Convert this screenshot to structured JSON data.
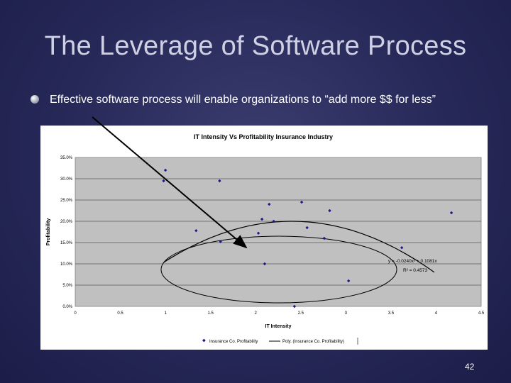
{
  "slide": {
    "title": "The Leverage of Software Process",
    "bullet": "Effective software process will enable organizations to “add more $$ for less”",
    "page_number": "42"
  },
  "chart_data": {
    "type": "scatter",
    "title": "IT Intensity Vs Profitability Insurance Industry",
    "xlabel": "IT Intensity",
    "ylabel": "Profitability",
    "xlim": [
      0,
      4.5
    ],
    "ylim": [
      0,
      0.35
    ],
    "x_ticks": [
      "0",
      "0.5",
      "1",
      "1.5",
      "2",
      "2.5",
      "3",
      "3.5",
      "4",
      "4.5"
    ],
    "y_ticks": [
      "0.0%",
      "5.0%",
      "10.0%",
      "15.0%",
      "20.0%",
      "25.0%",
      "30.0%",
      "35.0%"
    ],
    "grid": true,
    "series": [
      {
        "name": "Insurance Co. Profitability",
        "marker_color": "#1a1a8a",
        "points": [
          {
            "x": 0.98,
            "y": 0.295
          },
          {
            "x": 1.0,
            "y": 0.32
          },
          {
            "x": 1.34,
            "y": 0.178
          },
          {
            "x": 1.6,
            "y": 0.295
          },
          {
            "x": 1.61,
            "y": 0.152
          },
          {
            "x": 2.03,
            "y": 0.172
          },
          {
            "x": 2.07,
            "y": 0.205
          },
          {
            "x": 2.1,
            "y": 0.1
          },
          {
            "x": 2.15,
            "y": 0.24
          },
          {
            "x": 2.2,
            "y": 0.2
          },
          {
            "x": 2.43,
            "y": 0.0
          },
          {
            "x": 2.51,
            "y": 0.245
          },
          {
            "x": 2.57,
            "y": 0.185
          },
          {
            "x": 2.76,
            "y": 0.16
          },
          {
            "x": 2.82,
            "y": 0.225
          },
          {
            "x": 3.03,
            "y": 0.06
          },
          {
            "x": 3.62,
            "y": 0.138
          },
          {
            "x": 4.17,
            "y": 0.22
          }
        ]
      },
      {
        "name": "Poly. (Insurance Co. Profitability)",
        "line_color": "#000000",
        "equation": "y = -0.0240x² + 0.1081x",
        "r2": "R² = 0.4573"
      }
    ],
    "legend": "bottom"
  }
}
